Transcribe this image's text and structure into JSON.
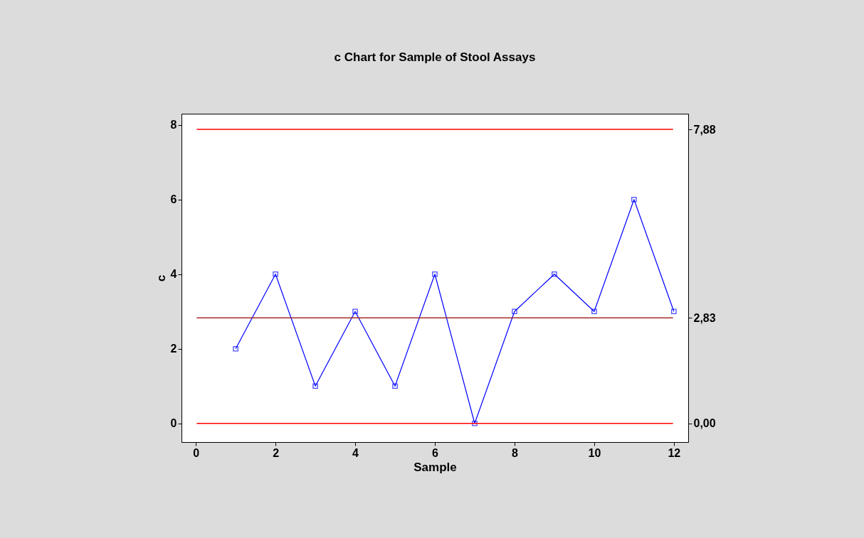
{
  "chart_data": {
    "type": "line",
    "title": "c Chart for Sample of Stool Assays",
    "xlabel": "Sample",
    "ylabel": "c",
    "x": [
      1,
      2,
      3,
      4,
      5,
      6,
      7,
      8,
      9,
      10,
      11,
      12
    ],
    "series": [
      {
        "color": "#0000ff",
        "values": [
          2,
          4,
          1,
          3,
          1,
          4,
          0,
          3,
          4,
          3,
          6,
          3
        ]
      }
    ],
    "marker": "square",
    "line_style": "solid",
    "grid": false,
    "xlim": [
      -0.36,
      12.36
    ],
    "xticks": [
      0,
      2,
      4,
      6,
      8,
      10,
      12
    ],
    "ylim": [
      -0.5,
      8.3
    ],
    "yticks": [
      0,
      2,
      4,
      6,
      8
    ],
    "y2lim": [
      -0.5,
      8.3
    ],
    "y2ticks": [
      {
        "value": 7.88,
        "label": "7,88"
      },
      {
        "value": 2.83,
        "label": "2,83"
      },
      {
        "value": 0,
        "label": "0,00"
      }
    ],
    "ref_lines": [
      {
        "axis": "y",
        "value": 7.88,
        "color": "#ff0000"
      },
      {
        "axis": "y",
        "value": 2.83,
        "color": "#a52a2a"
      },
      {
        "axis": "y",
        "value": 0,
        "color": "#ff0000"
      }
    ]
  }
}
